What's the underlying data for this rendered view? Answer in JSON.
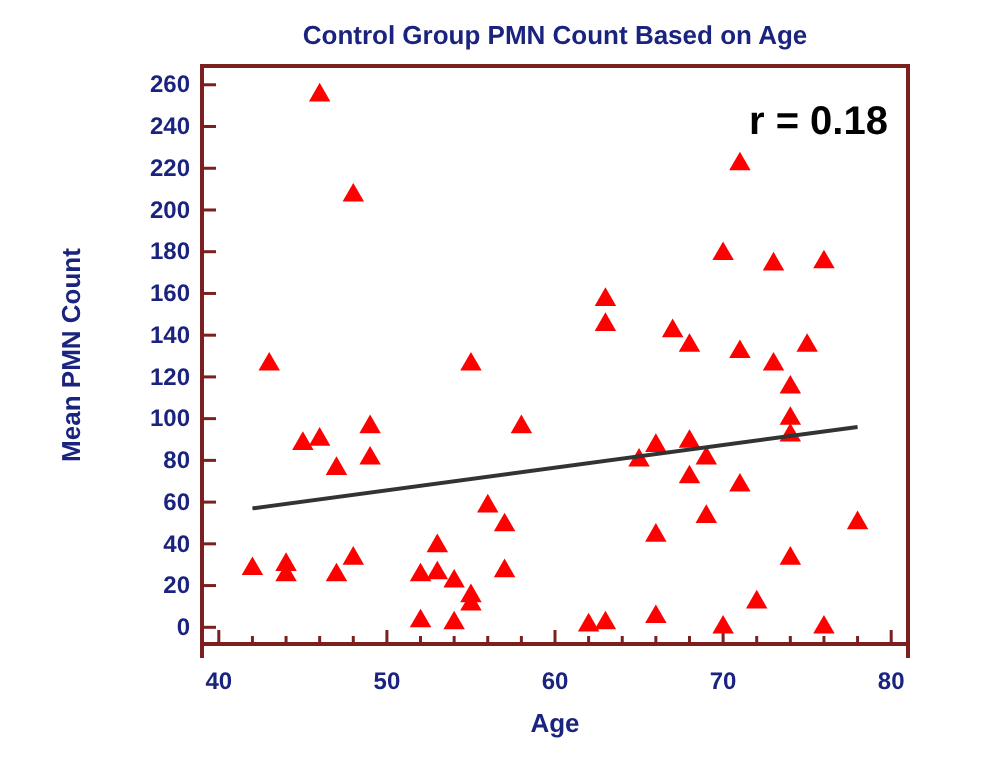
{
  "chart_data": {
    "type": "scatter",
    "title": "Control Group PMN Count Based on Age",
    "xlabel": "Age",
    "ylabel": "Mean PMN Count",
    "xlim": [
      39,
      81
    ],
    "xticks": [
      40,
      50,
      60,
      70,
      80
    ],
    "ylim": [
      -8,
      269
    ],
    "yticks": [
      0,
      20,
      40,
      60,
      80,
      100,
      120,
      140,
      160,
      180,
      200,
      220,
      240,
      260
    ],
    "marker": "triangle",
    "grid": false,
    "annotations": [
      "r = 0.18"
    ],
    "series": [
      {
        "color": "#ff0000",
        "x": [
          42,
          43,
          44,
          44,
          45,
          46,
          46,
          47,
          47,
          48,
          48,
          49,
          49,
          52,
          52,
          53,
          53,
          54,
          54,
          55,
          55,
          55,
          56,
          57,
          57,
          58,
          62,
          63,
          63,
          63,
          65,
          66,
          66,
          66,
          67,
          68,
          68,
          68,
          69,
          69,
          70,
          70,
          71,
          71,
          71,
          72,
          73,
          73,
          74,
          74,
          74,
          74,
          75,
          76,
          76,
          78
        ],
        "values": [
          28,
          126,
          30,
          25,
          88,
          255,
          90,
          76,
          25,
          207,
          33,
          96,
          81,
          25,
          3,
          39,
          26,
          22,
          2,
          126,
          15,
          11,
          58,
          49,
          27,
          96,
          1,
          157,
          145,
          2,
          80,
          87,
          44,
          5,
          142,
          135,
          89,
          72,
          81,
          53,
          179,
          0,
          222,
          132,
          68,
          12,
          174,
          126,
          115,
          100,
          92,
          33,
          135,
          175,
          0,
          50
        ]
      },
      {
        "type": "line",
        "color": "#333333",
        "marker": "none",
        "x": [
          42,
          78
        ],
        "values": [
          57,
          96
        ]
      }
    ]
  }
}
